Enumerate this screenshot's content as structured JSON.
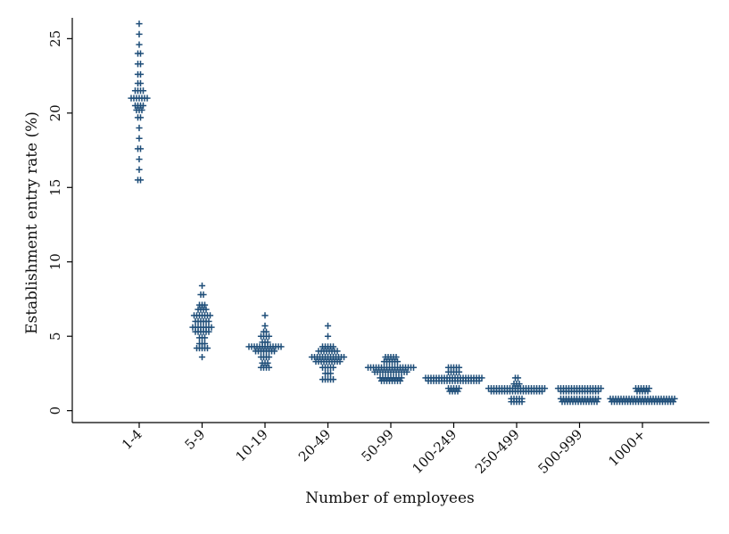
{
  "chart_data": {
    "type": "scatter",
    "subtype": "dot-strip",
    "title": "",
    "xlabel": "Number of employees",
    "ylabel": "Establishment entry rate (%)",
    "categories": [
      "1-4",
      "5-9",
      "10-19",
      "20-49",
      "50-99",
      "100-249",
      "250-499",
      "500-999",
      "1000+"
    ],
    "yticks": [
      0,
      5,
      10,
      15,
      20,
      25
    ],
    "ylim": [
      -0.8,
      26.4
    ],
    "marker": "+",
    "marker_color": "#1f4e79",
    "grid": false,
    "legend": "none",
    "groups": [
      {
        "category": "1-4",
        "points": [
          {
            "y": 26.0,
            "n": 1
          },
          {
            "y": 25.3,
            "n": 1
          },
          {
            "y": 24.6,
            "n": 1
          },
          {
            "y": 24.0,
            "n": 2
          },
          {
            "y": 23.3,
            "n": 2
          },
          {
            "y": 22.6,
            "n": 2
          },
          {
            "y": 22.0,
            "n": 2
          },
          {
            "y": 21.5,
            "n": 4
          },
          {
            "y": 21.0,
            "n": 7
          },
          {
            "y": 20.5,
            "n": 4
          },
          {
            "y": 20.2,
            "n": 3
          },
          {
            "y": 19.7,
            "n": 2
          },
          {
            "y": 19.0,
            "n": 1
          },
          {
            "y": 18.3,
            "n": 1
          },
          {
            "y": 17.6,
            "n": 2
          },
          {
            "y": 16.9,
            "n": 1
          },
          {
            "y": 16.2,
            "n": 1
          },
          {
            "y": 15.5,
            "n": 2
          }
        ]
      },
      {
        "category": "5-9",
        "points": [
          {
            "y": 8.4,
            "n": 1
          },
          {
            "y": 7.8,
            "n": 2
          },
          {
            "y": 7.1,
            "n": 3
          },
          {
            "y": 6.8,
            "n": 4
          },
          {
            "y": 6.4,
            "n": 7
          },
          {
            "y": 6.0,
            "n": 6
          },
          {
            "y": 5.6,
            "n": 8
          },
          {
            "y": 5.3,
            "n": 6
          },
          {
            "y": 4.9,
            "n": 3
          },
          {
            "y": 4.5,
            "n": 3
          },
          {
            "y": 4.2,
            "n": 5
          },
          {
            "y": 3.6,
            "n": 1
          }
        ]
      },
      {
        "category": "10-19",
        "points": [
          {
            "y": 6.4,
            "n": 1
          },
          {
            "y": 5.7,
            "n": 1
          },
          {
            "y": 5.3,
            "n": 2
          },
          {
            "y": 5.0,
            "n": 4
          },
          {
            "y": 4.6,
            "n": 3
          },
          {
            "y": 4.3,
            "n": 13
          },
          {
            "y": 4.0,
            "n": 8
          },
          {
            "y": 3.6,
            "n": 4
          },
          {
            "y": 3.2,
            "n": 3
          },
          {
            "y": 2.9,
            "n": 4
          }
        ]
      },
      {
        "category": "20-49",
        "points": [
          {
            "y": 5.7,
            "n": 1
          },
          {
            "y": 5.0,
            "n": 1
          },
          {
            "y": 4.3,
            "n": 5
          },
          {
            "y": 4.0,
            "n": 8
          },
          {
            "y": 3.6,
            "n": 13
          },
          {
            "y": 3.3,
            "n": 10
          },
          {
            "y": 2.9,
            "n": 5
          },
          {
            "y": 2.5,
            "n": 3
          },
          {
            "y": 2.1,
            "n": 5
          }
        ]
      },
      {
        "category": "50-99",
        "points": [
          {
            "y": 3.6,
            "n": 5
          },
          {
            "y": 3.3,
            "n": 6
          },
          {
            "y": 2.9,
            "n": 18
          },
          {
            "y": 2.6,
            "n": 13
          },
          {
            "y": 2.2,
            "n": 9
          },
          {
            "y": 2.0,
            "n": 8
          }
        ]
      },
      {
        "category": "100-249",
        "points": [
          {
            "y": 2.9,
            "n": 5
          },
          {
            "y": 2.6,
            "n": 5
          },
          {
            "y": 2.2,
            "n": 22
          },
          {
            "y": 2.0,
            "n": 20
          },
          {
            "y": 1.5,
            "n": 5
          },
          {
            "y": 1.3,
            "n": 4
          }
        ]
      },
      {
        "category": "250-499",
        "points": [
          {
            "y": 2.2,
            "n": 2
          },
          {
            "y": 1.8,
            "n": 3
          },
          {
            "y": 1.5,
            "n": 22
          },
          {
            "y": 1.3,
            "n": 20
          },
          {
            "y": 0.8,
            "n": 5
          },
          {
            "y": 0.6,
            "n": 5
          }
        ]
      },
      {
        "category": "500-999",
        "points": [
          {
            "y": 1.5,
            "n": 17
          },
          {
            "y": 1.3,
            "n": 15
          },
          {
            "y": 0.8,
            "n": 15
          },
          {
            "y": 0.6,
            "n": 14
          }
        ]
      },
      {
        "category": "1000+",
        "points": [
          {
            "y": 1.5,
            "n": 6
          },
          {
            "y": 1.3,
            "n": 5
          },
          {
            "y": 0.8,
            "n": 25
          },
          {
            "y": 0.6,
            "n": 24
          }
        ]
      }
    ]
  }
}
